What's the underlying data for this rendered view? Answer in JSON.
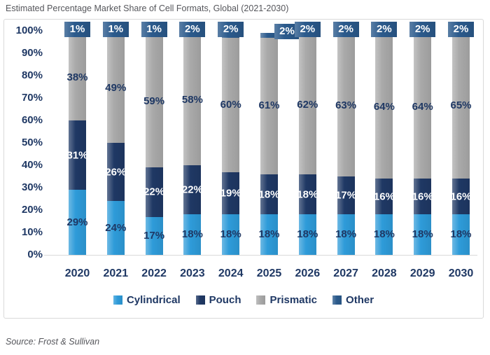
{
  "page": {
    "title": "Estimated Percentage Market Share of Cell Formats, Global (2021-2030)",
    "source": "Source: Frost & Sullivan"
  },
  "colors": {
    "cylindrical": "#2E9BD9",
    "pouch": "#1F3864",
    "prismatic": "#A9A9A9",
    "other": "#2B5A8C",
    "axis_text": "#1F3864",
    "title_text": "#55565B",
    "border": "#D9D9D9",
    "label_on_dark": "#FFFFFF"
  },
  "chart_data": {
    "type": "bar",
    "stacked": true,
    "title": "Estimated Percentage Market Share of Cell Formats, Global (2021-2030)",
    "categories": [
      "2020",
      "2021",
      "2022",
      "2023",
      "2024",
      "2025",
      "2026",
      "2027",
      "2028",
      "2029",
      "2030"
    ],
    "series": [
      {
        "name": "Cylindrical",
        "color": "#2E9BD9",
        "values": [
          29,
          24,
          17,
          18,
          18,
          18,
          18,
          18,
          18,
          18,
          18
        ]
      },
      {
        "name": "Pouch",
        "color": "#1F3864",
        "values": [
          31,
          26,
          22,
          22,
          19,
          18,
          18,
          17,
          16,
          16,
          16
        ]
      },
      {
        "name": "Prismatic",
        "color": "#A9A9A9",
        "values": [
          38,
          49,
          59,
          58,
          60,
          61,
          62,
          63,
          64,
          64,
          65
        ]
      },
      {
        "name": "Other",
        "color": "#2B5A8C",
        "values": [
          1,
          1,
          1,
          2,
          2,
          2,
          2,
          2,
          2,
          2,
          2
        ]
      }
    ],
    "unit": "%",
    "y_ticks": [
      "100%",
      "90%",
      "80%",
      "70%",
      "60%",
      "50%",
      "40%",
      "30%",
      "20%",
      "10%",
      "0%"
    ],
    "ylim": [
      0,
      100
    ],
    "grid": false,
    "legend": [
      "Cylindrical",
      "Pouch",
      "Prismatic",
      "Other"
    ],
    "legend_position": "bottom",
    "detached_other_label_category": "2025"
  }
}
